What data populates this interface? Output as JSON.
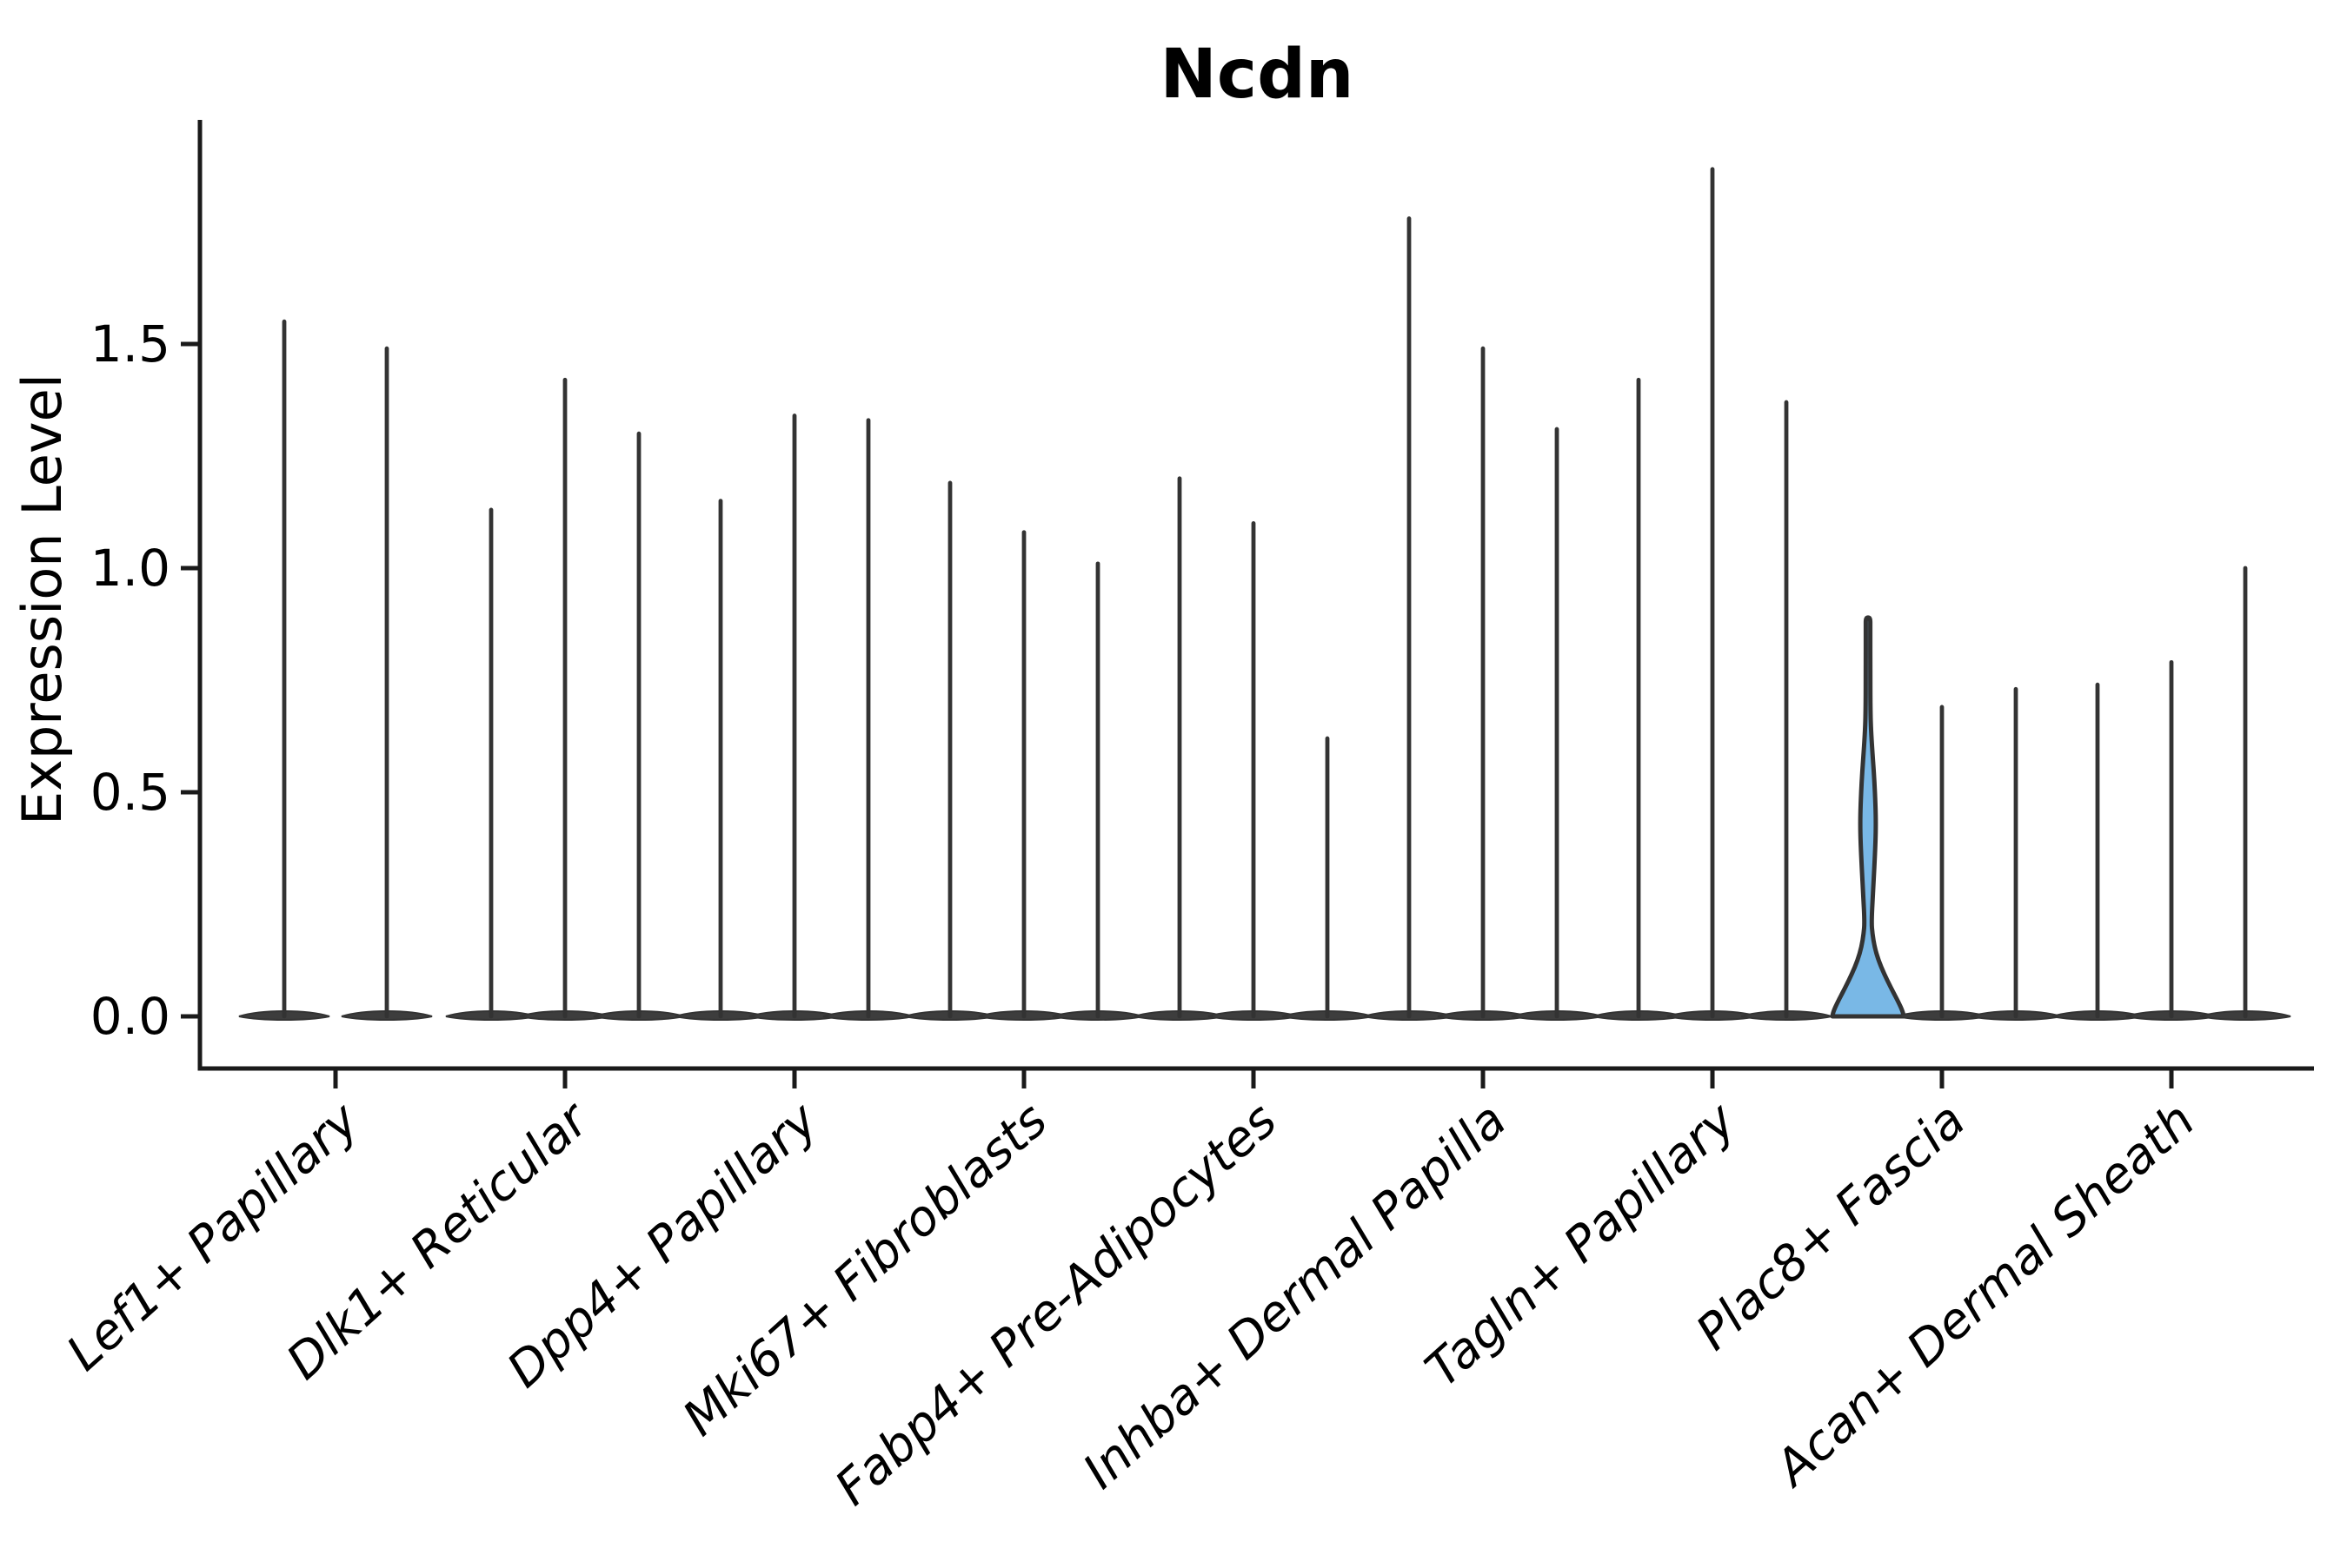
{
  "chart_data": {
    "type": "violin",
    "title": "Ncdn",
    "ylabel": "Expression Level",
    "xlabel": "",
    "ylim": [
      -0.12,
      2.0
    ],
    "grid": false,
    "legend": null,
    "yticks": [
      {
        "label": "0.0",
        "value": 0.0
      },
      {
        "label": "0.5",
        "value": 0.5
      },
      {
        "label": "1.0",
        "value": 1.0
      },
      {
        "label": "1.5",
        "value": 1.5
      }
    ],
    "categories": [
      "Lef1+ Papillary",
      "Dlk1+ Reticular",
      "Dpp4+ Papillary",
      "Mki67+ Fibroblasts",
      "Fabp4+ Pre-Adipocytes",
      "Inhba+ Dermal Papilla",
      "Tagln+ Papillary",
      "Plac8+ Fascia",
      "Acan+ Dermal Sheath"
    ],
    "groups": [
      {
        "category": "Lef1+ Papillary",
        "violins": [
          {
            "max": 1.55
          },
          {
            "max": 1.49
          }
        ]
      },
      {
        "category": "Dlk1+ Reticular",
        "violins": [
          {
            "max": 1.13
          },
          {
            "max": 1.42
          },
          {
            "max": 1.3
          }
        ]
      },
      {
        "category": "Dpp4+ Papillary",
        "violins": [
          {
            "max": 1.15
          },
          {
            "max": 1.34
          },
          {
            "max": 1.33
          }
        ]
      },
      {
        "category": "Mki67+ Fibroblasts",
        "violins": [
          {
            "max": 1.19
          },
          {
            "max": 1.08
          },
          {
            "max": 1.01
          }
        ]
      },
      {
        "category": "Fabp4+ Pre-Adipocytes",
        "violins": [
          {
            "max": 1.2
          },
          {
            "max": 1.1
          },
          {
            "max": 0.62
          }
        ]
      },
      {
        "category": "Inhba+ Dermal Papilla",
        "violins": [
          {
            "max": 1.78
          },
          {
            "max": 1.49
          },
          {
            "max": 1.31
          }
        ]
      },
      {
        "category": "Tagln+ Papillary",
        "violins": [
          {
            "max": 1.42
          },
          {
            "max": 1.89
          },
          {
            "max": 1.37
          }
        ]
      },
      {
        "category": "Plac8+ Fascia",
        "violins": [
          {
            "max": 0.88,
            "highlighted": true,
            "profile": [
              [
                0,
                41
              ],
              [
                0.01,
                40
              ],
              [
                0.03,
                35.5
              ],
              [
                0.065,
                26
              ],
              [
                0.095,
                18.5
              ],
              [
                0.125,
                12
              ],
              [
                0.155,
                7.5
              ],
              [
                0.185,
                5
              ],
              [
                0.21,
                4
              ],
              [
                0.27,
                5.5
              ],
              [
                0.33,
                7.2
              ],
              [
                0.39,
                8.6
              ],
              [
                0.43,
                9
              ],
              [
                0.47,
                8.6
              ],
              [
                0.53,
                7.2
              ],
              [
                0.59,
                5
              ],
              [
                0.64,
                3.4
              ],
              [
                0.68,
                2.8
              ],
              [
                0.76,
                2.6
              ],
              [
                0.88,
                2.6
              ]
            ]
          },
          {
            "max": 0.69
          },
          {
            "max": 0.73
          }
        ]
      },
      {
        "category": "Acan+ Dermal Sheath",
        "violins": [
          {
            "max": 0.74
          },
          {
            "max": 0.79
          },
          {
            "max": 1.0
          }
        ]
      }
    ],
    "colors": {
      "violin_line": "#333333",
      "violin_base_fill": "#3d3d3d",
      "highlight_fill": "#79b8e6",
      "axis": "#1a1a1a",
      "text": "#000000",
      "background": "#ffffff"
    }
  }
}
